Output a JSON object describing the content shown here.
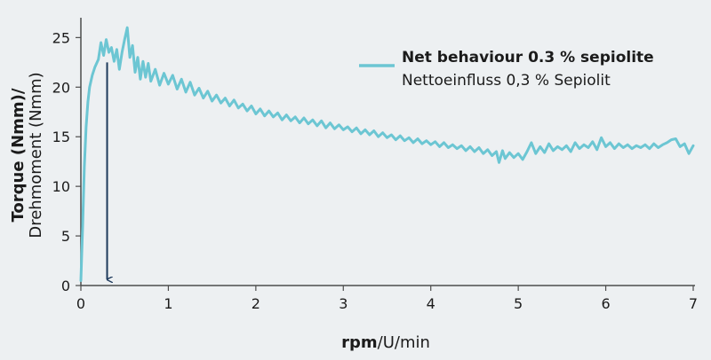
{
  "chart_data": {
    "type": "line",
    "xlabel_bold": "rpm",
    "xlabel_rest": "/U/min",
    "ylabel_line1": "Torque (Nmm)/",
    "ylabel_line2": "Drehmoment (Nmm)",
    "xlim": [
      0,
      7
    ],
    "ylim": [
      0,
      27
    ],
    "x_ticks": [
      0,
      1,
      2,
      3,
      4,
      5,
      6,
      7
    ],
    "y_ticks": [
      0,
      5,
      10,
      15,
      20,
      25
    ],
    "grid": false,
    "legend_position": "top-right",
    "series": [
      {
        "name": "Net behaviour 0.3 % sepiolite",
        "name_de": "Nettoeinfluss 0,3 % Sepiolit",
        "color": "#6cc6d3",
        "points": [
          [
            0.0,
            0.5
          ],
          [
            0.02,
            6
          ],
          [
            0.04,
            12
          ],
          [
            0.06,
            16
          ],
          [
            0.08,
            18.5
          ],
          [
            0.1,
            20
          ],
          [
            0.13,
            21.2
          ],
          [
            0.16,
            22
          ],
          [
            0.2,
            22.8
          ],
          [
            0.23,
            24.5
          ],
          [
            0.26,
            23.2
          ],
          [
            0.29,
            24.8
          ],
          [
            0.32,
            23.5
          ],
          [
            0.35,
            24
          ],
          [
            0.38,
            22.6
          ],
          [
            0.41,
            23.8
          ],
          [
            0.44,
            21.8
          ],
          [
            0.47,
            23.5
          ],
          [
            0.5,
            24.8
          ],
          [
            0.53,
            26
          ],
          [
            0.56,
            23
          ],
          [
            0.59,
            24.2
          ],
          [
            0.62,
            21.5
          ],
          [
            0.65,
            23
          ],
          [
            0.68,
            20.8
          ],
          [
            0.71,
            22.6
          ],
          [
            0.74,
            21
          ],
          [
            0.77,
            22.4
          ],
          [
            0.8,
            20.6
          ],
          [
            0.85,
            21.8
          ],
          [
            0.9,
            20.2
          ],
          [
            0.95,
            21.4
          ],
          [
            1.0,
            20.3
          ],
          [
            1.05,
            21.2
          ],
          [
            1.1,
            19.8
          ],
          [
            1.15,
            20.8
          ],
          [
            1.2,
            19.5
          ],
          [
            1.25,
            20.5
          ],
          [
            1.3,
            19.2
          ],
          [
            1.35,
            19.9
          ],
          [
            1.4,
            18.9
          ],
          [
            1.45,
            19.6
          ],
          [
            1.5,
            18.6
          ],
          [
            1.55,
            19.2
          ],
          [
            1.6,
            18.4
          ],
          [
            1.65,
            18.9
          ],
          [
            1.7,
            18.1
          ],
          [
            1.75,
            18.7
          ],
          [
            1.8,
            17.9
          ],
          [
            1.85,
            18.3
          ],
          [
            1.9,
            17.6
          ],
          [
            1.95,
            18.1
          ],
          [
            2.0,
            17.3
          ],
          [
            2.05,
            17.8
          ],
          [
            2.1,
            17.1
          ],
          [
            2.15,
            17.6
          ],
          [
            2.2,
            17.0
          ],
          [
            2.25,
            17.4
          ],
          [
            2.3,
            16.7
          ],
          [
            2.35,
            17.2
          ],
          [
            2.4,
            16.6
          ],
          [
            2.45,
            17.0
          ],
          [
            2.5,
            16.4
          ],
          [
            2.55,
            16.9
          ],
          [
            2.6,
            16.3
          ],
          [
            2.65,
            16.7
          ],
          [
            2.7,
            16.1
          ],
          [
            2.75,
            16.6
          ],
          [
            2.8,
            15.9
          ],
          [
            2.85,
            16.4
          ],
          [
            2.9,
            15.8
          ],
          [
            2.95,
            16.2
          ],
          [
            3.0,
            15.7
          ],
          [
            3.05,
            16.0
          ],
          [
            3.1,
            15.5
          ],
          [
            3.15,
            15.9
          ],
          [
            3.2,
            15.3
          ],
          [
            3.25,
            15.7
          ],
          [
            3.3,
            15.2
          ],
          [
            3.35,
            15.6
          ],
          [
            3.4,
            15.0
          ],
          [
            3.45,
            15.4
          ],
          [
            3.5,
            14.9
          ],
          [
            3.55,
            15.2
          ],
          [
            3.6,
            14.7
          ],
          [
            3.65,
            15.1
          ],
          [
            3.7,
            14.6
          ],
          [
            3.75,
            14.9
          ],
          [
            3.8,
            14.4
          ],
          [
            3.85,
            14.8
          ],
          [
            3.9,
            14.3
          ],
          [
            3.95,
            14.6
          ],
          [
            4.0,
            14.2
          ],
          [
            4.05,
            14.5
          ],
          [
            4.1,
            14.0
          ],
          [
            4.15,
            14.4
          ],
          [
            4.2,
            13.9
          ],
          [
            4.25,
            14.2
          ],
          [
            4.3,
            13.8
          ],
          [
            4.35,
            14.1
          ],
          [
            4.4,
            13.6
          ],
          [
            4.45,
            14.0
          ],
          [
            4.5,
            13.5
          ],
          [
            4.55,
            13.9
          ],
          [
            4.6,
            13.3
          ],
          [
            4.65,
            13.7
          ],
          [
            4.7,
            13.1
          ],
          [
            4.75,
            13.5
          ],
          [
            4.78,
            12.4
          ],
          [
            4.82,
            13.6
          ],
          [
            4.85,
            12.8
          ],
          [
            4.9,
            13.4
          ],
          [
            4.95,
            12.9
          ],
          [
            5.0,
            13.3
          ],
          [
            5.05,
            12.7
          ],
          [
            5.1,
            13.5
          ],
          [
            5.15,
            14.4
          ],
          [
            5.2,
            13.3
          ],
          [
            5.25,
            14.0
          ],
          [
            5.3,
            13.4
          ],
          [
            5.35,
            14.3
          ],
          [
            5.4,
            13.6
          ],
          [
            5.45,
            14.0
          ],
          [
            5.5,
            13.7
          ],
          [
            5.55,
            14.1
          ],
          [
            5.6,
            13.5
          ],
          [
            5.65,
            14.4
          ],
          [
            5.7,
            13.8
          ],
          [
            5.75,
            14.2
          ],
          [
            5.8,
            13.9
          ],
          [
            5.85,
            14.5
          ],
          [
            5.9,
            13.7
          ],
          [
            5.95,
            14.9
          ],
          [
            6.0,
            14.0
          ],
          [
            6.05,
            14.4
          ],
          [
            6.1,
            13.8
          ],
          [
            6.15,
            14.3
          ],
          [
            6.2,
            13.9
          ],
          [
            6.25,
            14.2
          ],
          [
            6.3,
            13.8
          ],
          [
            6.35,
            14.1
          ],
          [
            6.4,
            13.9
          ],
          [
            6.45,
            14.2
          ],
          [
            6.5,
            13.8
          ],
          [
            6.55,
            14.3
          ],
          [
            6.6,
            13.9
          ],
          [
            6.65,
            14.2
          ],
          [
            6.7,
            14.4
          ],
          [
            6.75,
            14.7
          ],
          [
            6.8,
            14.8
          ],
          [
            6.85,
            14.0
          ],
          [
            6.9,
            14.3
          ],
          [
            6.95,
            13.3
          ],
          [
            7.0,
            14.1
          ]
        ]
      }
    ],
    "annotation_arrow": {
      "x": 0.3,
      "y_from": 22.5,
      "y_to": 0.6,
      "color": "#1e3a5c"
    }
  }
}
